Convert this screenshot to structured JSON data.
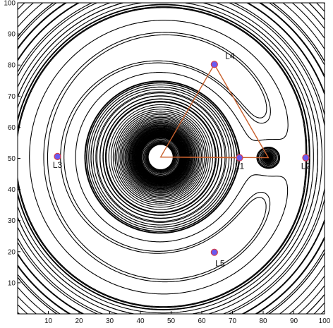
{
  "chart_data": {
    "type": "contour",
    "xlim": [
      0,
      100
    ],
    "ylim": [
      0,
      100
    ],
    "x_ticks": [
      10,
      20,
      30,
      40,
      50,
      60,
      70,
      80,
      90,
      100
    ],
    "y_ticks": [
      10,
      20,
      30,
      40,
      50,
      60,
      70,
      80,
      90,
      100
    ],
    "primary_mass": {
      "x": 46.6,
      "y": 50.4
    },
    "secondary_mass": {
      "x": 81.7,
      "y": 50.2
    },
    "lagrange_points": [
      {
        "name": "L1",
        "x": 72.3,
        "y": 50.2
      },
      {
        "name": "L2",
        "x": 93.9,
        "y": 50.2
      },
      {
        "name": "L3",
        "x": 13.0,
        "y": 50.6
      },
      {
        "name": "L4",
        "x": 64.1,
        "y": 80.2
      },
      {
        "name": "L5",
        "x": 64.1,
        "y": 19.8
      }
    ],
    "triangle": [
      {
        "x": 46.6,
        "y": 50.4
      },
      {
        "x": 64.1,
        "y": 80.2
      },
      {
        "x": 81.7,
        "y": 50.2
      }
    ],
    "colors": {
      "contour": "#000000",
      "triangle": "#c8612e",
      "point_fill": "#6a5af0",
      "point_stroke": "#d43c4a"
    }
  }
}
